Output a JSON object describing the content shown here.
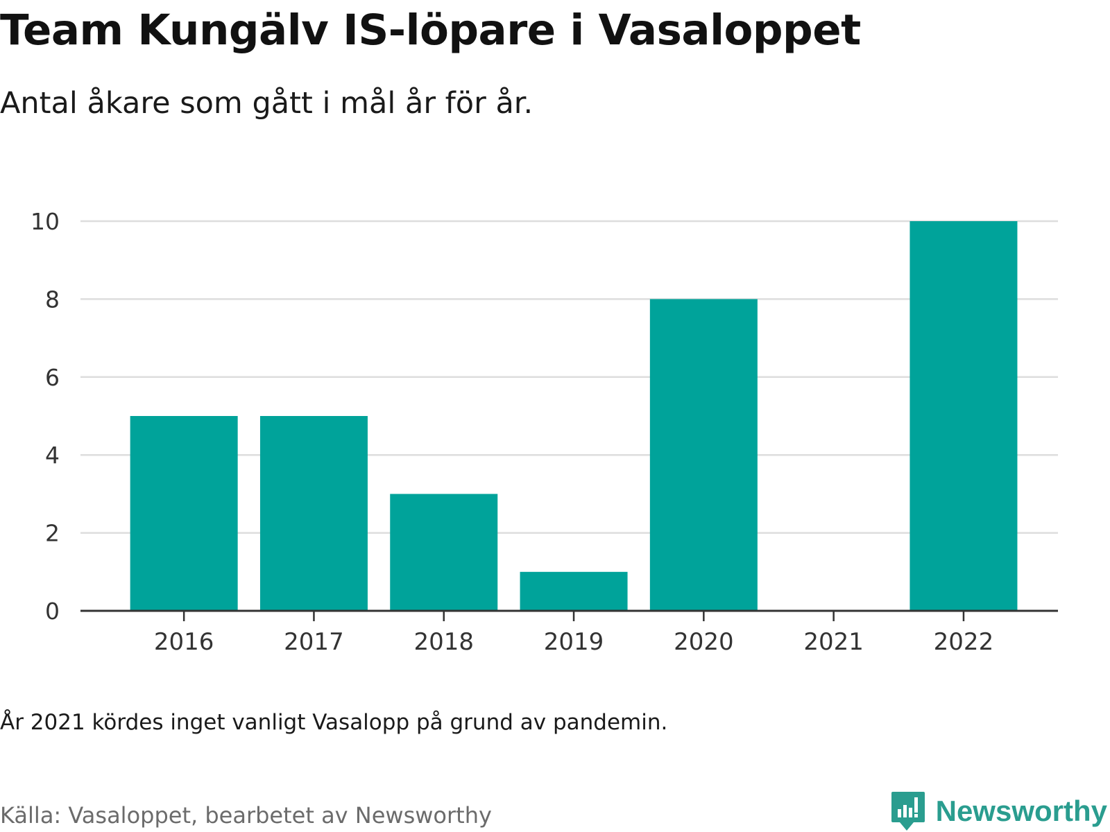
{
  "title": "Team Kungälv IS-löpare i Vasaloppet",
  "subtitle": "Antal åkare som gått i mål år för år.",
  "note": "År 2021 kördes inget vanligt Vasalopp på grund av pandemin.",
  "source": "Källa: Vasaloppet, bearbetet av Newsworthy",
  "brand": {
    "name": "Newsworthy",
    "icon": "newsworthy-logo-icon",
    "color": "#2a9d8f"
  },
  "colors": {
    "bar": "#00a39a",
    "grid": "#dddddd",
    "axis": "#333333",
    "tick_text": "#333333"
  },
  "chart_data": {
    "type": "bar",
    "categories": [
      "2016",
      "2017",
      "2018",
      "2019",
      "2020",
      "2021",
      "2022"
    ],
    "values": [
      5,
      5,
      3,
      1,
      8,
      0,
      10
    ],
    "yticks": [
      "0",
      "2",
      "4",
      "6",
      "8",
      "10"
    ],
    "ylim": [
      0,
      10
    ],
    "grid": true,
    "legend": "none",
    "title": "Team Kungälv IS-löpare i Vasaloppet",
    "xlabel": "",
    "ylabel": ""
  }
}
